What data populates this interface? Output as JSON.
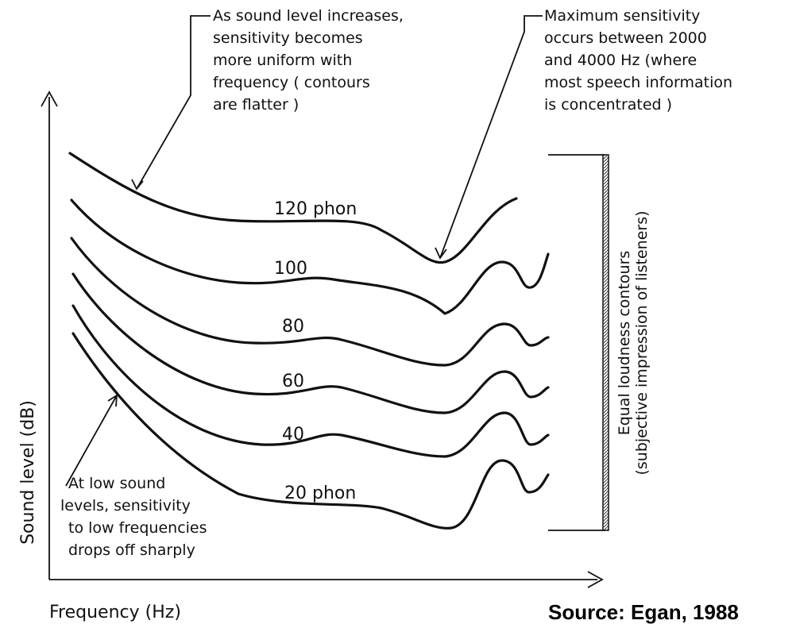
{
  "axes": {
    "y_label": "Sound level (dB)",
    "x_label": "Frequency (Hz)"
  },
  "annotations": [
    {
      "lines": [
        "As sound level increases,",
        "sensitivity becomes",
        "more uniform with",
        "frequency ( contours",
        "are flatter )"
      ]
    },
    {
      "lines": [
        "Maximum sensitivity",
        "occurs between 2000",
        "and 4000 Hz (where",
        "most speech information",
        "is concentrated )"
      ]
    },
    {
      "lines": [
        "At low sound",
        "levels, sensitivity",
        "to low frequencies",
        "drops off sharply"
      ]
    }
  ],
  "contours": [
    "120 phon",
    "100",
    "80",
    "60",
    "40",
    "20 phon"
  ],
  "bracket_label": [
    "Equal loudness contours",
    "(subjective impression of listeners)"
  ],
  "source": "Source: Egan, 1988"
}
